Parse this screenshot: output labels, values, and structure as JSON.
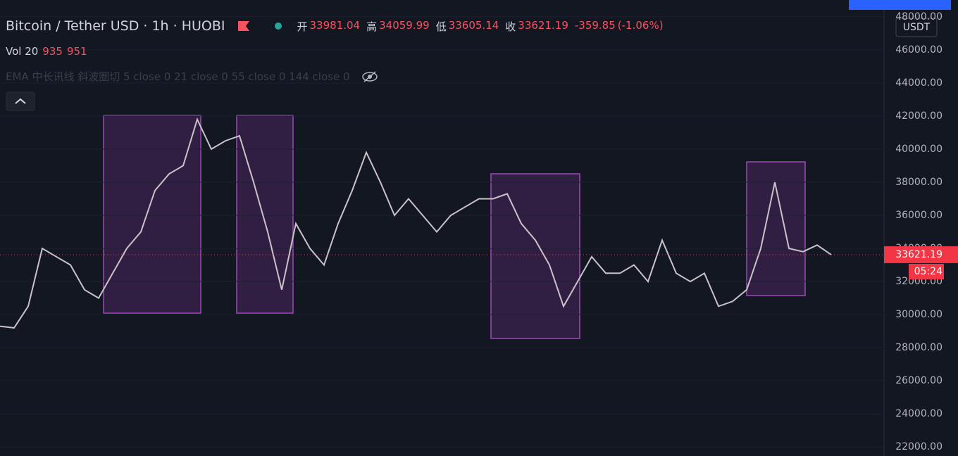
{
  "chart_data": {
    "type": "line",
    "title": "Bitcoin / Tether USD · 1h · HUOBI",
    "ohlc": {
      "open_label": "开",
      "open": 33981.04,
      "high_label": "高",
      "high": 34059.99,
      "low_label": "低",
      "low": 33605.14,
      "close_label": "收",
      "close": 33621.19,
      "change": -359.85,
      "change_percent": "(-1.06%)"
    },
    "volume": {
      "label": "Vol 20",
      "values": [
        935,
        951
      ]
    },
    "ema_label": "EMA 中长讯线 斜波圈切 5 close 0 21 close 0 55 close 0 144 close 0",
    "currency": "USDT",
    "countdown": "05:24",
    "color": "#c9c2c8",
    "values": [
      29300,
      29200,
      30500,
      34000,
      33500,
      33000,
      31500,
      31000,
      32500,
      34000,
      35000,
      37500,
      38500,
      39000,
      41800,
      40000,
      40500,
      40800,
      38000,
      35000,
      31500,
      35500,
      34000,
      33000,
      35500,
      37500,
      39800,
      38000,
      36000,
      37000,
      36000,
      35000,
      36000,
      36500,
      37000,
      37000,
      37300,
      35500,
      34500,
      33000,
      30500,
      32000,
      33500,
      32500,
      32500,
      33000,
      32000,
      34500,
      32500,
      32000,
      32500,
      30500,
      30800,
      31500,
      34000,
      38000,
      34000,
      33800,
      34200,
      33621.19
    ],
    "ylim": [
      21500,
      48500
    ],
    "yticks": [
      {
        "value": 48000,
        "label": "48000.00"
      },
      {
        "value": 46000,
        "label": "46000.00"
      },
      {
        "value": 44000,
        "label": "44000.00"
      },
      {
        "value": 42000,
        "label": "42000.00"
      },
      {
        "value": 40000,
        "label": "40000.00"
      },
      {
        "value": 38000,
        "label": "38000.00"
      },
      {
        "value": 36000,
        "label": "36000.00"
      },
      {
        "value": 34000,
        "label": "34000.00"
      },
      {
        "value": 32000,
        "label": "32000.00"
      },
      {
        "value": 30000,
        "label": "30000.00"
      },
      {
        "value": 28000,
        "label": "28000.00"
      },
      {
        "value": 26000,
        "label": "26000.00"
      },
      {
        "value": 24000,
        "label": "24000.00"
      },
      {
        "value": 22000,
        "label": "22000.00"
      }
    ],
    "grid": true
  }
}
